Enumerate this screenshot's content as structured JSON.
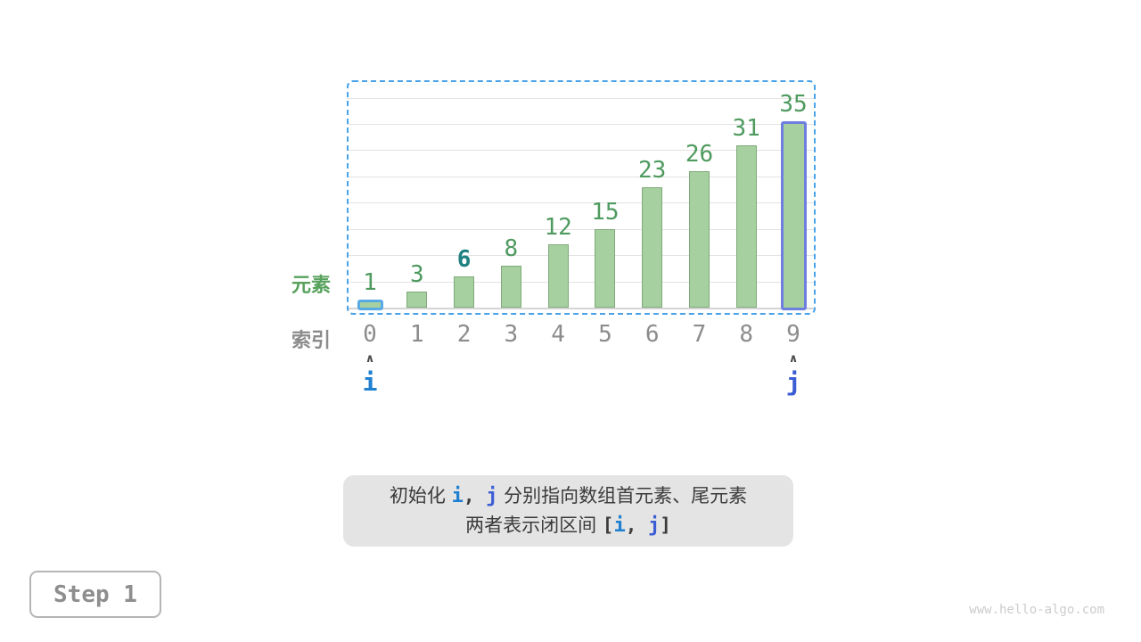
{
  "chart_data": {
    "type": "bar",
    "title": "",
    "categories": [
      "0",
      "1",
      "2",
      "3",
      "4",
      "5",
      "6",
      "7",
      "8",
      "9"
    ],
    "values": [
      1,
      3,
      6,
      8,
      12,
      15,
      23,
      26,
      31,
      35
    ],
    "xlabel": "索引",
    "ylabel": "元素",
    "ylim": [
      0,
      40
    ],
    "gridline_step": 5,
    "grid": true,
    "legend": "none",
    "target_index": 2,
    "target_value": 6,
    "pointers": [
      {
        "name": "i",
        "index": 0
      },
      {
        "name": "j",
        "index": 9
      }
    ],
    "search_range": [
      0,
      9
    ]
  },
  "glyphs": {
    "caret": "∧"
  },
  "caption": {
    "lines": [
      {
        "segments": [
          {
            "text": "初始化 ",
            "role": "plain"
          },
          {
            "text": "i",
            "role": "i"
          },
          {
            "text": ", ",
            "role": "mono"
          },
          {
            "text": "j",
            "role": "j"
          },
          {
            "text": " 分别指向数组首元素、尾元素",
            "role": "plain"
          }
        ]
      },
      {
        "segments": [
          {
            "text": "两者表示闭区间 ",
            "role": "plain"
          },
          {
            "text": "[",
            "role": "mono"
          },
          {
            "text": "i",
            "role": "i"
          },
          {
            "text": ", ",
            "role": "mono"
          },
          {
            "text": "j",
            "role": "j"
          },
          {
            "text": "]",
            "role": "mono"
          }
        ]
      }
    ]
  },
  "step_badge": {
    "label": "Step 1"
  },
  "watermark": "www.hello-algo.com",
  "colors": {
    "background": "#ffffff",
    "bar_fill": "#a7d0a1",
    "bar_border": "#7fa97a",
    "value_text": "#4f9a5f",
    "target_text": "#1f8181",
    "index_text": "#8c8c8c",
    "element_label": "#57a25d",
    "pointer_i": "#1f7fd1",
    "pointer_j": "#3c5ed4",
    "bar_i_border": "#58a9e4",
    "bar_j_border": "#6d80e0",
    "range_border": "#4aa3e8",
    "gridline": "#e3e3e3",
    "baseline": "#d4d4d4",
    "caret_color": "#4a4a4a",
    "caption_bg": "#e4e4e4",
    "caption_text": "#3b3b3b",
    "step_border": "#b5b5b5",
    "step_text": "#8e8e8e",
    "watermark": "#cccccc"
  }
}
